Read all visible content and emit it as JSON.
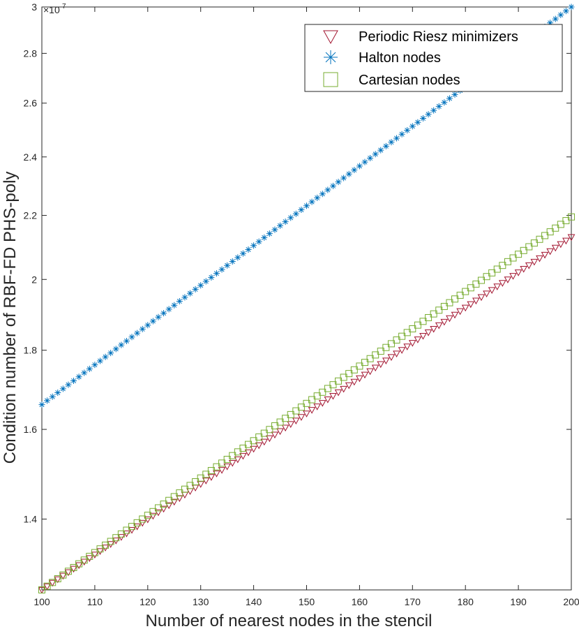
{
  "chart_data": {
    "type": "scatter",
    "xlabel": "Number of nearest nodes in the stencil",
    "ylabel": "Condition number of RBF-FD PHS-poly",
    "xlim": [
      100,
      200
    ],
    "ylim": [
      1.26,
      3.0
    ],
    "y_scale": "log",
    "y_multiplier": "×10",
    "y_exponent": "7",
    "x_ticks": [
      "100",
      "110",
      "120",
      "130",
      "140",
      "150",
      "160",
      "170",
      "180",
      "190",
      "200"
    ],
    "y_ticks": [
      "1.4",
      "1.6",
      "1.8",
      "2",
      "2.2",
      "2.4",
      "2.6",
      "2.8",
      "3"
    ],
    "grid": false,
    "legend_position": "top-right",
    "x": {
      "start": 100,
      "end": 200,
      "step": 1
    },
    "series": [
      {
        "name": "Periodic Riesz minimizers",
        "marker": "triangle-down",
        "color": "#a2142f",
        "y_start": 1.26,
        "y_end": 2.13
      },
      {
        "name": "Halton nodes",
        "marker": "asterisk",
        "color": "#0072bd",
        "y_start": 1.66,
        "y_end": 3.0
      },
      {
        "name": "Cartesian nodes",
        "marker": "square",
        "color": "#77ac30",
        "y_start": 1.26,
        "y_end": 2.195
      }
    ]
  }
}
